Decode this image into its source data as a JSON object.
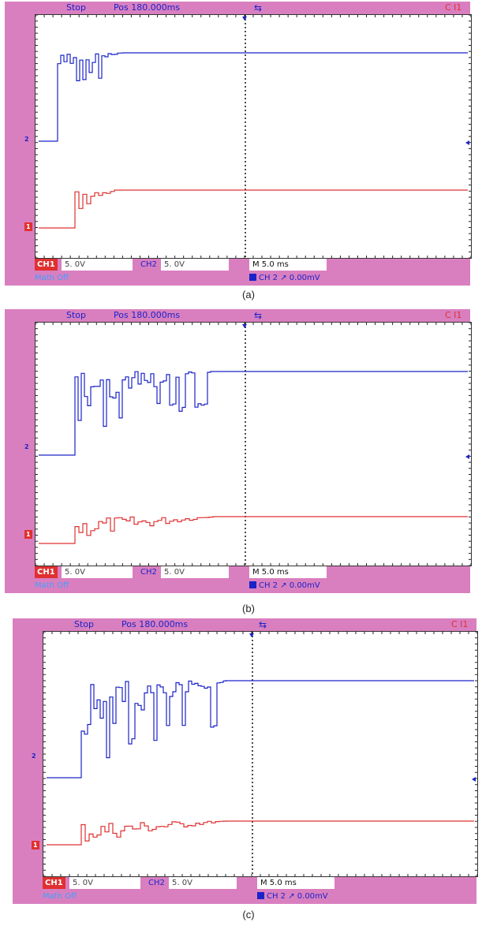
{
  "colors": {
    "frame": "#d97fc0",
    "ch1_trace": "#e03030",
    "ch2_trace": "#1a23c8",
    "math": "#3fa0ff"
  },
  "panels": [
    {
      "top": {
        "state": "Stop",
        "hpos": "Pos 180.000ms",
        "trigger_icon": "trigger-arrow-icon",
        "source": "C I1"
      },
      "markers": {
        "ch2": "2",
        "ch1": "1"
      },
      "bottom": {
        "ch1_label": "CH1",
        "ch1_scale": "5. 0V",
        "ch2_label": "CH2",
        "ch2_scale": "5. 0V",
        "time_label": "M 5.0 ms",
        "math_label": "Math Off",
        "trigger_label": "CH 2 ↗ 0.00mV"
      },
      "caption": "(a)"
    },
    {
      "top": {
        "state": "Stop",
        "hpos": "Pos 180.000ms",
        "trigger_icon": "trigger-arrow-icon",
        "source": "C I1"
      },
      "markers": {
        "ch2": "2",
        "ch1": "1"
      },
      "bottom": {
        "ch1_label": "CH1",
        "ch1_scale": "5. 0V",
        "ch2_label": "CH2",
        "ch2_scale": "5. 0V",
        "time_label": "M 5.0 ms",
        "math_label": "Math Off",
        "trigger_label": "CH 2 ↗ 0.00mV"
      },
      "caption": "(b)"
    },
    {
      "top": {
        "state": "Stop",
        "hpos": "Pos 180.000ms",
        "trigger_icon": "trigger-arrow-icon",
        "source": "C I1"
      },
      "markers": {
        "ch2": "2",
        "ch1": "1"
      },
      "bottom": {
        "ch1_label": "CH1",
        "ch1_scale": "5. 0V",
        "ch2_label": "CH2",
        "ch2_scale": "5. 0V",
        "time_label": "M 5.0 ms",
        "math_label": "Math Off",
        "trigger_label": "CH 2 ↗ 0.00mV"
      },
      "caption": "(c)"
    }
  ]
}
